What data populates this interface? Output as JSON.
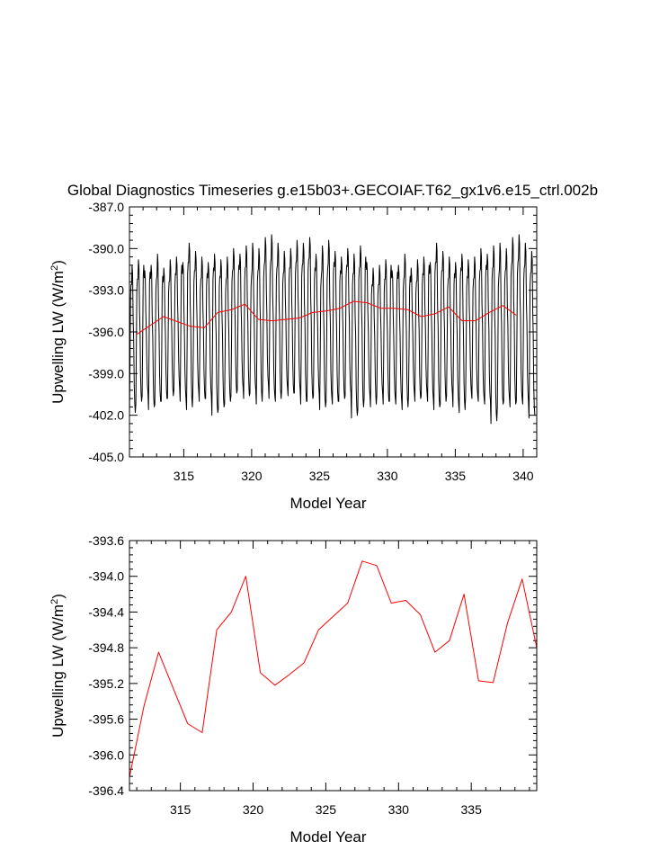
{
  "chart_data": [
    {
      "type": "line",
      "title": "Global Diagnostics Timeseries g.e15b03+.GECOIAF.T62_gx1v6.e15_ctrl.002b",
      "xlabel": "Model Year",
      "ylabel_main": "Upwelling LW (W/m",
      "ylabel_sup": "2",
      "ylabel_close": ")",
      "xlim": [
        311,
        341
      ],
      "ylim": [
        -405.0,
        -387.0
      ],
      "xticks": [
        "315",
        "320",
        "325",
        "330",
        "335",
        "340"
      ],
      "yticks": [
        "-387.0",
        "-390.0",
        "-393.0",
        "-396.0",
        "-399.0",
        "-402.0",
        "-405.0"
      ],
      "monthly_minima": [
        -402.0,
        -401.2,
        -400.6,
        -401.6,
        -401.2,
        -401.0,
        -400.8,
        -400.2,
        -401.0,
        -401.6,
        -400.4,
        -401.0,
        -400.8,
        -402.0,
        -401.6,
        -401.2,
        -400.6,
        -400.2,
        -400.8,
        -400.4,
        -401.2,
        -400.0,
        -400.8,
        -401.0,
        -400.2,
        -400.6,
        -400.4,
        -401.2,
        -401.0,
        -400.6,
        -401.6,
        -401.0,
        -401.2,
        -401.0,
        -400.6,
        -402.2,
        -401.6,
        -400.8,
        -401.4,
        -400.6,
        -401.2,
        -401.0,
        -401.2,
        -401.6,
        -400.6,
        -401.0,
        -400.6,
        -401.0,
        -401.6,
        -401.2,
        -400.6,
        -401.4,
        -401.8,
        -400.6,
        -400.8,
        -401.0,
        -401.2,
        -402.6,
        -401.4,
        -401.0,
        -401.4,
        -401.0,
        -401.2,
        -402.2
      ],
      "monthly_peaks1": [
        -393.4,
        -393.0,
        -392.0,
        -392.5,
        -393.0,
        -392.8,
        -393.2,
        -392.6,
        -392.0,
        -391.8,
        -392.4,
        -393.0,
        -392.6,
        -392.2,
        -392.8,
        -393.0,
        -392.4,
        -392.0,
        -392.2,
        -392.8,
        -392.4,
        -392.0,
        -391.8,
        -392.2,
        -392.6,
        -392.2,
        -391.8,
        -392.0,
        -391.6,
        -392.2,
        -392.8,
        -392.2,
        -391.8,
        -392.4,
        -392.0,
        -392.6,
        -392.2,
        -391.4,
        -393.4
      ],
      "monthly_peaks2": [
        -391.2,
        -390.8,
        -391.6,
        -391.2,
        -390.4,
        -391.4,
        -390.8,
        -390.6,
        -391.0,
        -389.6,
        -390.2,
        -390.6,
        -391.0,
        -390.4,
        -390.8,
        -390.6,
        -390.0,
        -390.4,
        -389.8,
        -389.6,
        -390.0,
        -389.2,
        -389.0,
        -389.6,
        -390.2,
        -390.0,
        -389.4,
        -389.6,
        -389.2,
        -390.4,
        -389.8,
        -389.4,
        -390.2,
        -390.6,
        -390.0,
        -390.4,
        -389.8,
        -391.0,
        -391.4
      ],
      "series": [
        {
          "color": "#000000",
          "kind": "monthly"
        },
        {
          "color": "#ff0000",
          "kind": "annual",
          "x": [
            311.5,
            313.5,
            315.5,
            316.5,
            317.5,
            318.5,
            319.5,
            320.5,
            321.5,
            323.5,
            324.5,
            325.5,
            326.5,
            327.5,
            328.5,
            329.5,
            330.5,
            331.5,
            332.5,
            333.5,
            334.5,
            335.5,
            336.5,
            337.5,
            338.5,
            339.5
          ],
          "values": [
            -396.2,
            -394.9,
            -395.6,
            -395.7,
            -394.6,
            -394.4,
            -394.0,
            -395.1,
            -395.2,
            -395.0,
            -394.6,
            -394.5,
            -394.3,
            -393.8,
            -393.9,
            -394.3,
            -394.3,
            -394.4,
            -394.9,
            -394.7,
            -394.2,
            -395.2,
            -395.2,
            -394.6,
            -394.1,
            -394.8
          ]
        }
      ]
    },
    {
      "type": "line",
      "title": "",
      "xlabel": "Model Year",
      "ylabel_main": "Upwelling LW (W/m",
      "ylabel_sup": "2",
      "ylabel_close": ")",
      "xlim": [
        311.5,
        339.5
      ],
      "ylim": [
        -396.4,
        -393.6
      ],
      "xticks": [
        "315",
        "320",
        "325",
        "330",
        "335"
      ],
      "yticks": [
        "-393.6",
        "-394.0",
        "-394.4",
        "-394.8",
        "-395.2",
        "-395.6",
        "-396.0",
        "-396.4"
      ],
      "series": [
        {
          "color": "#ff0000",
          "x": [
            311.5,
            312.5,
            313.5,
            314.5,
            315.5,
            316.5,
            317.5,
            318.5,
            319.5,
            320.5,
            321.5,
            322.5,
            323.5,
            324.5,
            325.5,
            326.5,
            327.5,
            328.5,
            329.5,
            330.5,
            331.5,
            332.5,
            333.5,
            334.5,
            335.5,
            336.5,
            337.5,
            338.5,
            339.5
          ],
          "values": [
            -396.25,
            -395.45,
            -394.85,
            -395.25,
            -395.65,
            -395.75,
            -394.6,
            -394.4,
            -394.0,
            -395.08,
            -395.22,
            -395.1,
            -394.97,
            -394.6,
            -394.45,
            -394.3,
            -393.83,
            -393.88,
            -394.3,
            -394.27,
            -394.43,
            -394.85,
            -394.72,
            -394.2,
            -395.17,
            -395.19,
            -394.52,
            -394.03,
            -394.8
          ]
        }
      ]
    }
  ]
}
